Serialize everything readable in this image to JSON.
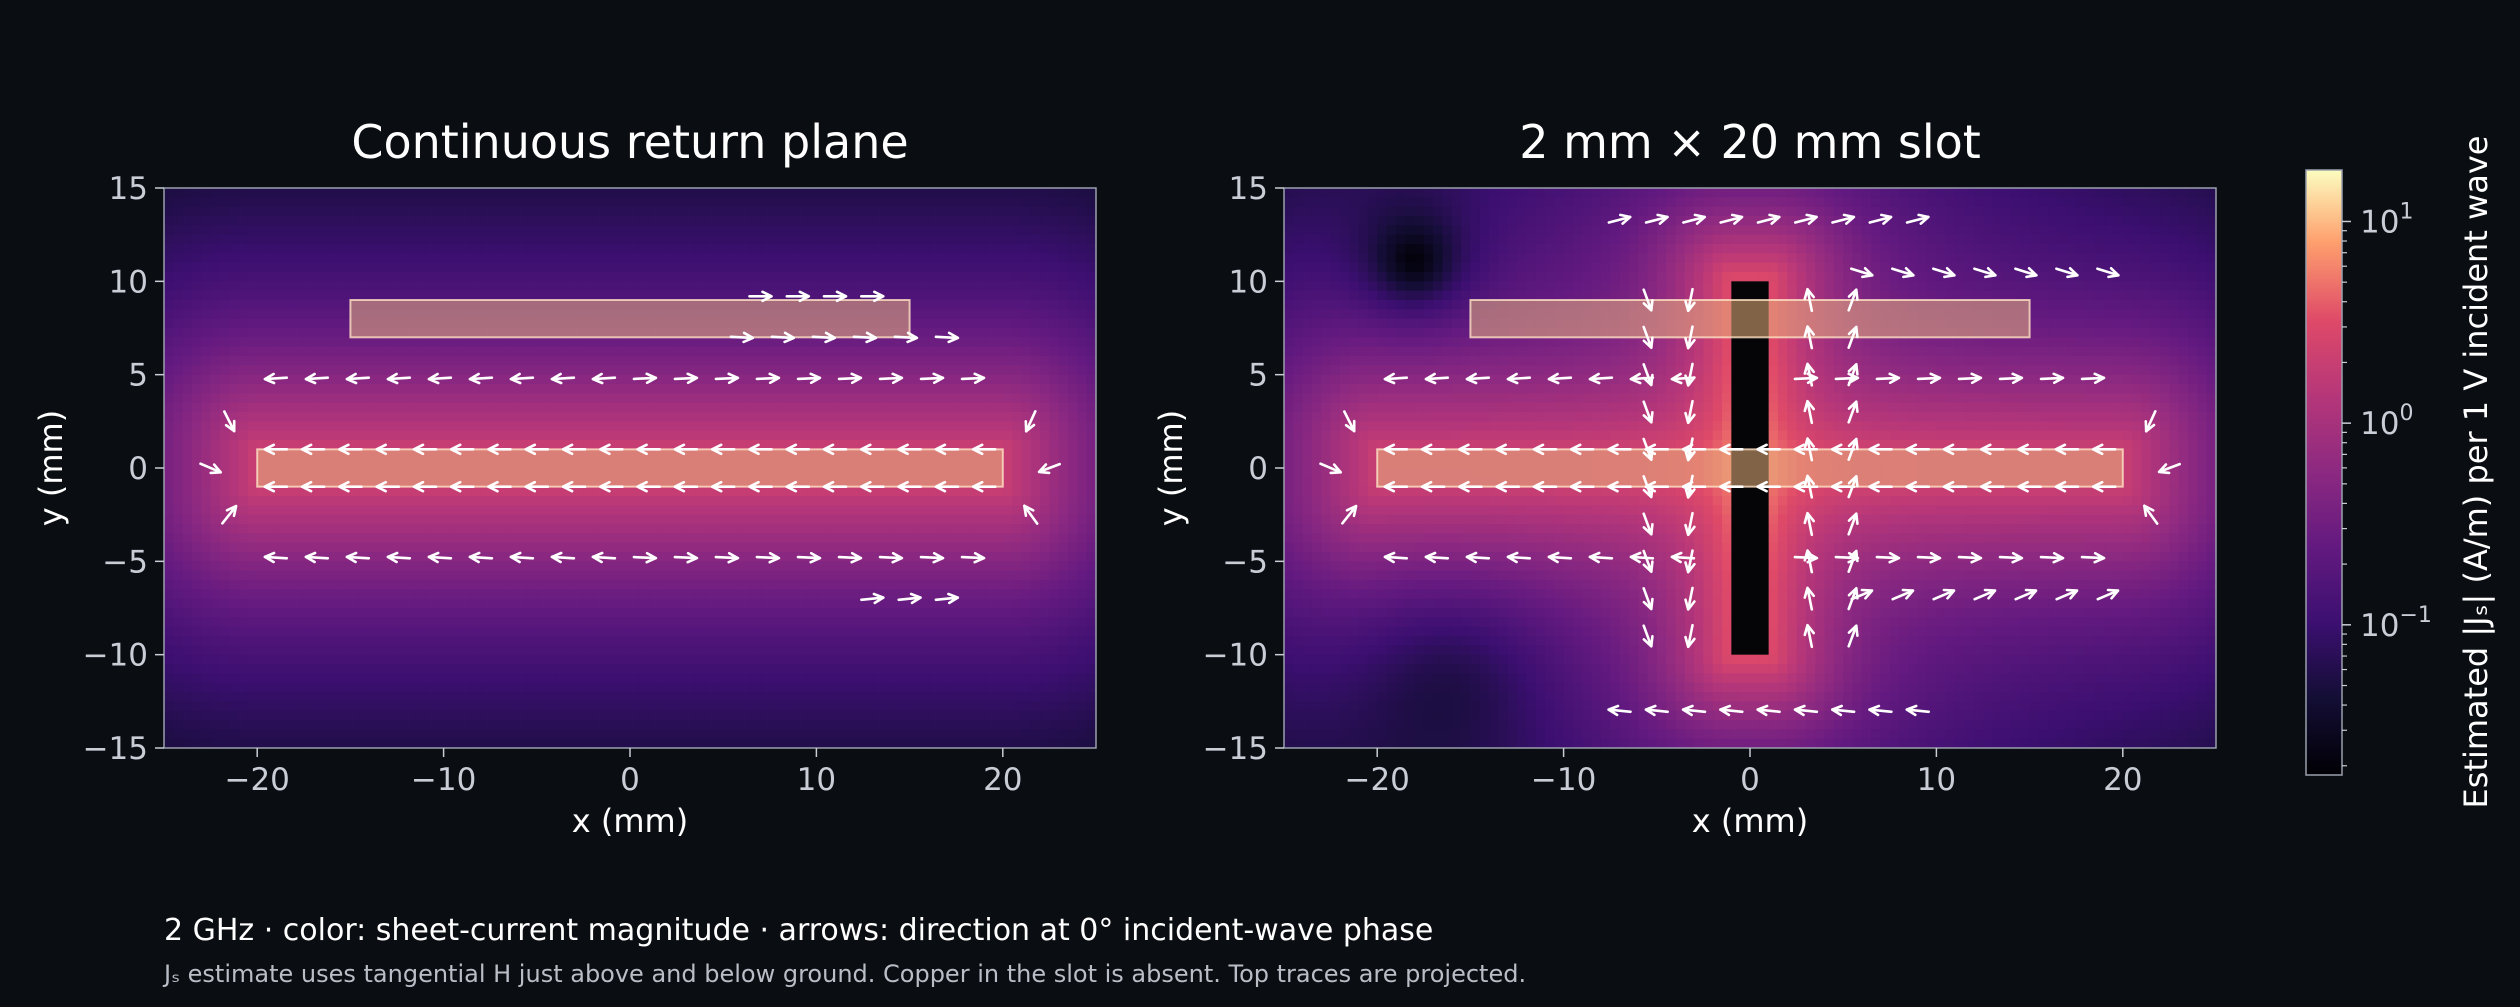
{
  "figure": {
    "caption": "2 GHz · color: sheet-current magnitude · arrows: direction at 0° incident-wave phase",
    "note": "Jₛ estimate uses tangential H just above and below ground. Copper in the slot is absent. Top traces are projected."
  },
  "colorbar": {
    "label": "Estimated |Jₛ| (A/m) per 1 V incident wave",
    "scale": "log",
    "range": [
      0.018,
      18
    ],
    "colormap": "magma",
    "tick_labels": [
      {
        "base": "10",
        "exp": "1",
        "value": 10
      },
      {
        "base": "10",
        "exp": "0",
        "value": 1
      },
      {
        "base": "10",
        "exp": "−1",
        "value": 0.1
      }
    ]
  },
  "chart_data": [
    {
      "type": "heatmap",
      "title": "Continuous return plane",
      "xlabel": "x (mm)",
      "ylabel": "y (mm)",
      "xlim": [
        -25,
        25
      ],
      "ylim": [
        -15,
        15
      ],
      "xticks": [
        "−20",
        "−10",
        "0",
        "10",
        "20"
      ],
      "xtick_values": [
        -20,
        -10,
        0,
        10,
        20
      ],
      "yticks": [
        "15",
        "10",
        "5",
        "0",
        "−5",
        "−10",
        "−15"
      ],
      "ytick_values": [
        15,
        10,
        5,
        0,
        -5,
        -10,
        -15
      ],
      "traces": [
        {
          "x0": -20,
          "x1": 20,
          "y0": -1,
          "y1": 1
        },
        {
          "x0": -15,
          "x1": 15,
          "y0": 7,
          "y1": 9
        }
      ],
      "slot": null,
      "grid": false
    },
    {
      "type": "heatmap",
      "title": "2 mm × 20 mm slot",
      "xlabel": "x (mm)",
      "ylabel": "y (mm)",
      "xlim": [
        -25,
        25
      ],
      "ylim": [
        -15,
        15
      ],
      "xticks": [
        "−20",
        "−10",
        "0",
        "10",
        "20"
      ],
      "xtick_values": [
        -20,
        -10,
        0,
        10,
        20
      ],
      "yticks": [
        "15",
        "10",
        "5",
        "0",
        "−5",
        "−10",
        "−15"
      ],
      "ytick_values": [
        15,
        10,
        5,
        0,
        -5,
        -10,
        -15
      ],
      "traces": [
        {
          "x0": -20,
          "x1": 20,
          "y0": -1,
          "y1": 1
        },
        {
          "x0": -15,
          "x1": 15,
          "y0": 7,
          "y1": 9
        }
      ],
      "slot": {
        "x0": -1,
        "x1": 1,
        "y0": -10,
        "y1": 10
      },
      "grid": false
    }
  ]
}
